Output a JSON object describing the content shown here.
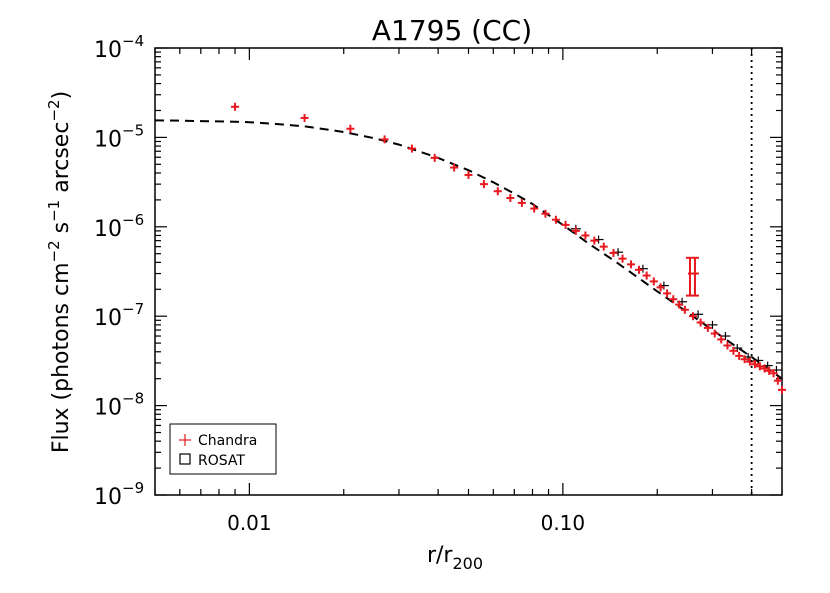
{
  "chart_data": {
    "type": "scatter",
    "title": "A1795 (CC)",
    "xlabel": {
      "main": "r/r",
      "sub": "200"
    },
    "ylabel": {
      "lead": "Flux (photons cm",
      "e1": "−2",
      "s": " s",
      "e2": "−1",
      "arcsec": " arcsec",
      "e3": "−2",
      "close": ")"
    },
    "x_scale": "log",
    "y_scale": "log",
    "xlim": [
      0.005,
      0.5
    ],
    "ylim": [
      1e-09,
      0.0001
    ],
    "x_ticks": [
      {
        "value": 0.01,
        "label": "0.01"
      },
      {
        "value": 0.1,
        "label": "0.10"
      }
    ],
    "y_ticks": [
      {
        "value": 1e-09,
        "base": "10",
        "exp": "−9"
      },
      {
        "value": 1e-08,
        "base": "10",
        "exp": "−8"
      },
      {
        "value": 1e-07,
        "base": "10",
        "exp": "−7"
      },
      {
        "value": 1e-06,
        "base": "10",
        "exp": "−6"
      },
      {
        "value": 1e-05,
        "base": "10",
        "exp": "−5"
      },
      {
        "value": 0.0001,
        "base": "10",
        "exp": "−4"
      }
    ],
    "vertical_line_x": 0.4,
    "legend": {
      "position": "bottom-left",
      "entries": [
        {
          "label": "Chandra",
          "symbol": "+",
          "color": "#e8191e"
        },
        {
          "label": "ROSAT",
          "symbol": "square",
          "color": "#000000"
        }
      ]
    },
    "model_curve": {
      "style": "dashed",
      "x": [
        0.005,
        0.006,
        0.007,
        0.008,
        0.009,
        0.01,
        0.012,
        0.015,
        0.02,
        0.025,
        0.03,
        0.04,
        0.05,
        0.06,
        0.07,
        0.08,
        0.1,
        0.12,
        0.15,
        0.2,
        0.25,
        0.3,
        0.35,
        0.4,
        0.45,
        0.5
      ],
      "y": [
        1.55e-05,
        1.54e-05,
        1.52e-05,
        1.51e-05,
        1.5e-05,
        1.48e-05,
        1.42e-05,
        1.33e-05,
        1.15e-05,
        9.8e-06,
        8.3e-06,
        5.9e-06,
        4.3e-06,
        3.15e-06,
        2.35e-06,
        1.8e-06,
        1.05e-06,
        6.6e-07,
        3.9e-07,
        1.9e-07,
        1.1e-07,
        7e-08,
        4.8e-08,
        3.5e-08,
        2.6e-08,
        2e-08
      ]
    },
    "series": [
      {
        "name": "Chandra",
        "color": "#e8191e",
        "x": [
          0.009,
          0.015,
          0.021,
          0.027,
          0.033,
          0.039,
          0.045,
          0.05,
          0.056,
          0.062,
          0.068,
          0.074,
          0.081,
          0.088,
          0.095,
          0.102,
          0.11,
          0.118,
          0.126,
          0.135,
          0.145,
          0.155,
          0.165,
          0.175,
          0.185,
          0.195,
          0.205,
          0.215,
          0.225,
          0.235,
          0.245,
          0.26,
          0.275,
          0.29,
          0.305,
          0.32,
          0.335,
          0.35,
          0.365,
          0.38,
          0.395,
          0.41,
          0.425,
          0.44,
          0.455,
          0.47,
          0.485,
          0.5
        ],
        "y": [
          2.2e-05,
          1.65e-05,
          1.25e-05,
          9.5e-06,
          7.5e-06,
          5.9e-06,
          4.6e-06,
          3.8e-06,
          3e-06,
          2.5e-06,
          2.1e-06,
          1.85e-06,
          1.6e-06,
          1.4e-06,
          1.2e-06,
          1.05e-06,
          9e-07,
          8e-07,
          7e-07,
          6e-07,
          5.1e-07,
          4.4e-07,
          3.8e-07,
          3.3e-07,
          2.85e-07,
          2.45e-07,
          2.1e-07,
          1.8e-07,
          1.55e-07,
          1.35e-07,
          1.18e-07,
          1e-07,
          8.5e-08,
          7.4e-08,
          6.4e-08,
          5.5e-08,
          4.7e-08,
          4.1e-08,
          3.6e-08,
          3.3e-08,
          3.1e-08,
          2.9e-08,
          2.75e-08,
          2.6e-08,
          2.45e-08,
          2.3e-08,
          1.9e-08,
          1.5e-08
        ]
      },
      {
        "name": "ROSAT",
        "color": "#000000",
        "x": [
          0.11,
          0.13,
          0.15,
          0.18,
          0.21,
          0.24,
          0.27,
          0.3,
          0.33,
          0.36,
          0.39,
          0.42,
          0.45,
          0.48
        ],
        "y": [
          9.5e-07,
          7.2e-07,
          5.2e-07,
          3.4e-07,
          2.2e-07,
          1.45e-07,
          1.05e-07,
          8e-08,
          6e-08,
          4.4e-08,
          3.5e-08,
          3.2e-08,
          2.8e-08,
          2.5e-08
        ]
      }
    ],
    "outlier": {
      "x": 0.26,
      "y": 3e-07,
      "y_low": 1.7e-07,
      "y_high": 4.5e-07,
      "color": "#e8191e"
    }
  }
}
